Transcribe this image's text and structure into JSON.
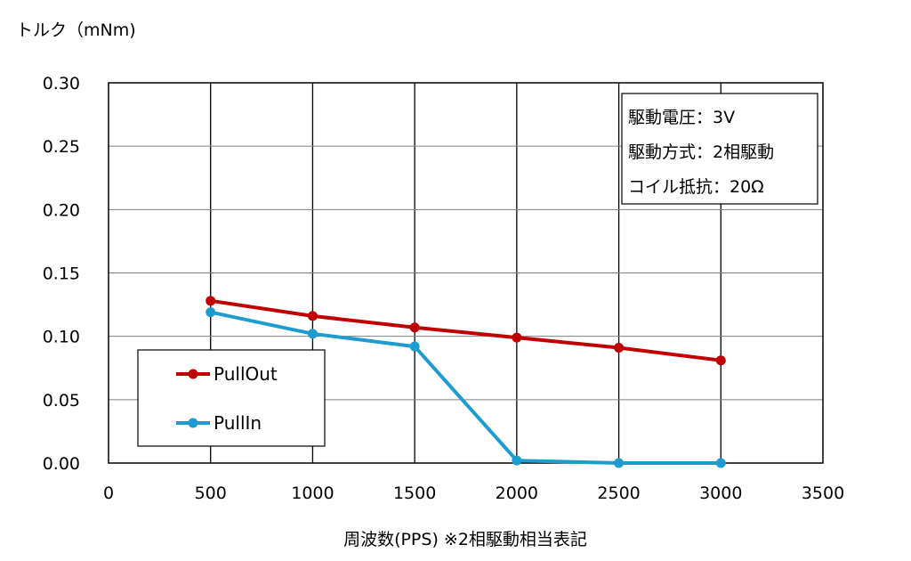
{
  "chart_data": {
    "type": "line",
    "ylabel": "トルク（mNm)",
    "xlabel": "周波数(PPS) ※2相駆動相当表記",
    "xlim": [
      0,
      3500
    ],
    "ylim": [
      0,
      0.3
    ],
    "xticks": [
      "0",
      "500",
      "1000",
      "1500",
      "2000",
      "2500",
      "3000",
      "3500"
    ],
    "yticks": [
      "0.00",
      "0.05",
      "0.10",
      "0.15",
      "0.20",
      "0.25",
      "0.30"
    ],
    "grid": true,
    "legend_position": "bottom-left",
    "series": [
      {
        "name": "PullOut",
        "color": "#c00000",
        "x": [
          500,
          1000,
          1500,
          2000,
          2500,
          3000
        ],
        "y": [
          0.128,
          0.116,
          0.107,
          0.099,
          0.091,
          0.081
        ]
      },
      {
        "name": "PullIn",
        "color": "#1f9ccf",
        "x": [
          500,
          1000,
          1500,
          2000,
          2500,
          3000
        ],
        "y": [
          0.119,
          0.102,
          0.092,
          0.002,
          0.0,
          0.0
        ]
      }
    ],
    "annotations": [
      "駆動電圧：3V",
      "駆動方式：2相駆動",
      "コイル抵抗：20Ω"
    ]
  }
}
